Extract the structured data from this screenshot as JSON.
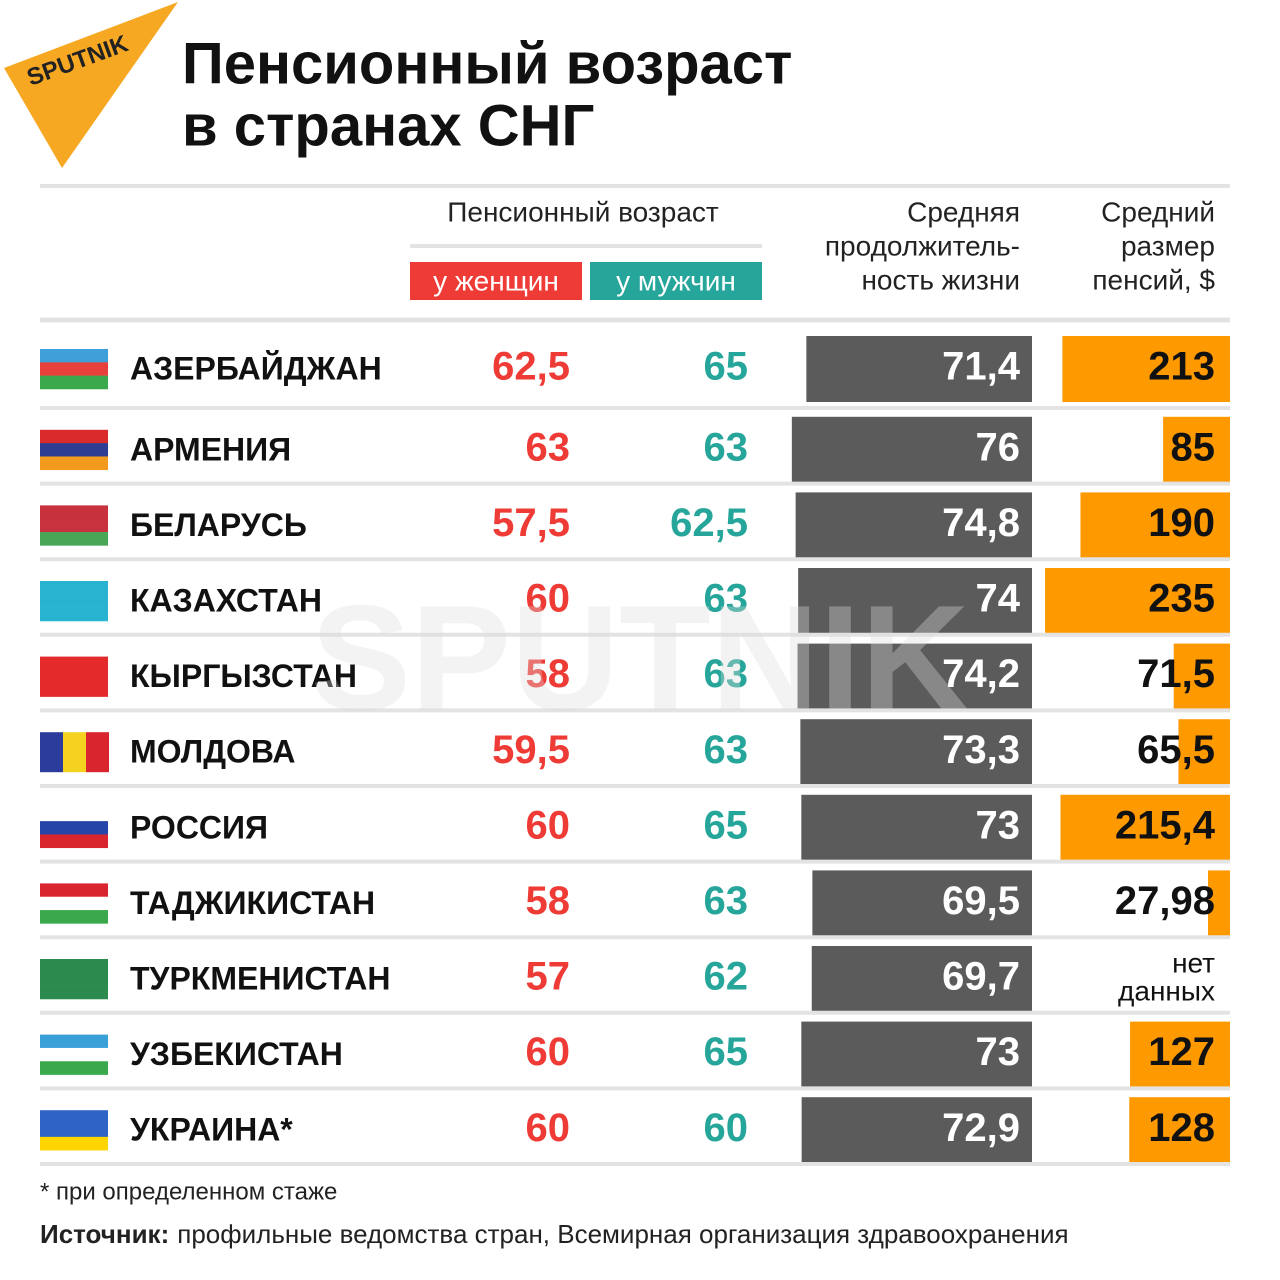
{
  "logo": "SPUTNIK",
  "watermark": "SPUTNIK",
  "title": [
    "Пенсионный возраст",
    "в странах СНГ"
  ],
  "header": {
    "age": "Пенсионный возраст",
    "women": "у женщин",
    "men": "у мужчин",
    "life": [
      "Средняя",
      "продолжитель-",
      "ность жизни"
    ],
    "pension": [
      "Средний",
      "размер",
      "пенсий, $"
    ]
  },
  "rows": [
    {
      "country": "АЗЕРБАЙДЖАН",
      "women": "62,5",
      "men": "65",
      "life": "71,4",
      "pension": "213"
    },
    {
      "country": "АРМЕНИЯ",
      "women": "63",
      "men": "63",
      "life": "76",
      "pension": "85"
    },
    {
      "country": "БЕЛАРУСЬ",
      "women": "57,5",
      "men": "62,5",
      "life": "74,8",
      "pension": "190"
    },
    {
      "country": "КАЗАХСТАН",
      "women": "60",
      "men": "63",
      "life": "74",
      "pension": "235"
    },
    {
      "country": "КЫРГЫЗСТАН",
      "women": "58",
      "men": "63",
      "life": "74,2",
      "pension": "71,5"
    },
    {
      "country": "МОЛДОВА",
      "women": "59,5",
      "men": "63",
      "life": "73,3",
      "pension": "65,5"
    },
    {
      "country": "РОССИЯ",
      "women": "60",
      "men": "65",
      "life": "73",
      "pension": "215,4"
    },
    {
      "country": "ТАДЖИКИСТАН",
      "women": "58",
      "men": "63",
      "life": "69,5",
      "pension": "27,98"
    },
    {
      "country": "ТУРКМЕНИСТАН",
      "women": "57",
      "men": "62",
      "life": "69,7",
      "pension": [
        "нет",
        "данных"
      ]
    },
    {
      "country": "УЗБЕКИСТАН",
      "women": "60",
      "men": "65",
      "life": "73",
      "pension": "127"
    },
    {
      "country": "УКРАИНА*",
      "women": "60",
      "men": "60",
      "life": "72,9",
      "pension": "128"
    }
  ],
  "footnote": "* при определенном стаже",
  "source": {
    "label": "Источник:",
    "text": "профильные ведомства стран, Всемирная организация здравоохранения"
  }
}
